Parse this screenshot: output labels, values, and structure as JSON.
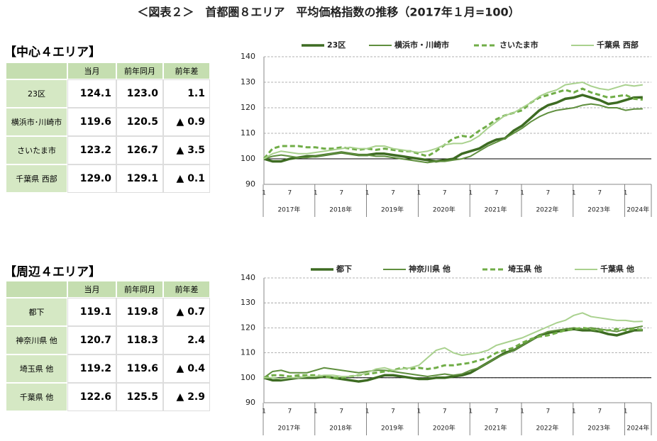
{
  "title": "＜図表２＞　首都圏８エリア　平均価格指数の推移（2017年１月=100）",
  "tables": [
    {
      "heading": "【中心４エリア】",
      "columns": [
        "当月",
        "前年同月",
        "前年差"
      ],
      "rows": [
        [
          "23区",
          "124.1",
          "123.0",
          "1.1"
        ],
        [
          "横浜市･川崎市",
          "119.6",
          "120.5",
          "▲ 0.9"
        ],
        [
          "さいたま市",
          "123.2",
          "126.7",
          "▲ 3.5"
        ],
        [
          "千葉県 西部",
          "129.0",
          "129.1",
          "▲ 0.1"
        ]
      ]
    },
    {
      "heading": "【周辺４エリア】",
      "columns": [
        "当月",
        "前年同月",
        "前年差"
      ],
      "rows": [
        [
          "都下",
          "119.1",
          "119.8",
          "▲ 0.7"
        ],
        [
          "神奈川県 他",
          "120.7",
          "118.3",
          "2.4"
        ],
        [
          "埼玉県 他",
          "119.2",
          "119.6",
          "▲ 0.4"
        ],
        [
          "千葉県 他",
          "122.6",
          "125.5",
          "▲ 2.9"
        ]
      ]
    }
  ],
  "chart_data": [
    {
      "type": "line",
      "ylim": [
        90,
        140
      ],
      "yticks": [
        90,
        100,
        110,
        120,
        130,
        140
      ],
      "grid": true,
      "reference_line": 100,
      "categories": [
        "1",
        null,
        null,
        "7",
        null,
        null,
        "1",
        null,
        null,
        "7",
        null,
        null,
        "1",
        null,
        null,
        "7",
        null,
        null,
        "1",
        null,
        null,
        "7",
        null,
        null,
        "1",
        null,
        null,
        "7",
        null,
        null,
        "1",
        null,
        null,
        "7",
        null,
        null,
        "1",
        null,
        null,
        "7",
        null,
        null,
        "1",
        null,
        null
      ],
      "year_labels": [
        "2017年",
        "2018年",
        "2019年",
        "2020年",
        "2021年",
        "2022年",
        "2023年",
        "2024年"
      ],
      "series": [
        {
          "name": "23区",
          "color": "#3d6b22",
          "width": 3.5,
          "dashed": false,
          "values": [
            100,
            99,
            99,
            100,
            100.5,
            101,
            101,
            101.5,
            102,
            102.5,
            102,
            101.5,
            101.5,
            102,
            102,
            101.5,
            101,
            100.5,
            100,
            99.5,
            99,
            99.5,
            100,
            102,
            103,
            104,
            106,
            107.5,
            108,
            111,
            113,
            116,
            119,
            121,
            122,
            123.5,
            124,
            125,
            124,
            123,
            121.5,
            122,
            123,
            124,
            124.1
          ]
        },
        {
          "name": "横浜市・川崎市",
          "color": "#5f8f3e",
          "width": 2,
          "dashed": false,
          "values": [
            100,
            101,
            101.5,
            101,
            100.5,
            100.5,
            101,
            101.5,
            102,
            102.5,
            102,
            101.5,
            101.5,
            101,
            101,
            100.5,
            100,
            99.5,
            99,
            98.5,
            99,
            99,
            99.5,
            100,
            101,
            103,
            105,
            106.5,
            108,
            110,
            112,
            114.5,
            116.5,
            118,
            119,
            119.5,
            120,
            121,
            121.5,
            121,
            120,
            120,
            119,
            119.5,
            119.6
          ]
        },
        {
          "name": "さいたま市",
          "color": "#70ad47",
          "width": 3,
          "dashed": true,
          "values": [
            100,
            104,
            105,
            105,
            105,
            104.5,
            104.5,
            104,
            104,
            104.5,
            104,
            103.5,
            104,
            103.5,
            104,
            103.5,
            103,
            103,
            102,
            101,
            103,
            105.5,
            108,
            109,
            108.5,
            111,
            113,
            115.5,
            117,
            118,
            119,
            122,
            124,
            125,
            126,
            127,
            126,
            127.5,
            126,
            125,
            124,
            124.5,
            125,
            123.5,
            123.2
          ]
        },
        {
          "name": "千葉県 西部",
          "color": "#a9d18e",
          "width": 2,
          "dashed": false,
          "values": [
            100,
            102,
            103,
            102.5,
            102,
            102,
            102.5,
            103,
            103.5,
            104,
            104.5,
            104,
            104,
            105,
            105,
            104,
            103.5,
            103,
            102.5,
            103,
            104,
            105.5,
            106,
            106,
            107,
            109,
            112,
            114.5,
            117,
            118,
            120,
            122,
            124.5,
            126,
            127,
            129,
            129.5,
            130,
            128.5,
            127.5,
            127,
            128,
            129,
            128.5,
            129.0
          ]
        }
      ]
    },
    {
      "type": "line",
      "ylim": [
        90,
        140
      ],
      "yticks": [
        90,
        100,
        110,
        120,
        130,
        140
      ],
      "grid": true,
      "reference_line": 100,
      "categories": [
        "1",
        null,
        null,
        "7",
        null,
        null,
        "1",
        null,
        null,
        "7",
        null,
        null,
        "1",
        null,
        null,
        "7",
        null,
        null,
        "1",
        null,
        null,
        "7",
        null,
        null,
        "1",
        null,
        null,
        "7",
        null,
        null,
        "1",
        null,
        null,
        "7",
        null,
        null,
        "1",
        null,
        null,
        "7",
        null,
        null,
        "1",
        null,
        null
      ],
      "year_labels": [
        "2017年",
        "2018年",
        "2019年",
        "2020年",
        "2021年",
        "2022年",
        "2023年",
        "2024年"
      ],
      "series": [
        {
          "name": "都下",
          "color": "#3d6b22",
          "width": 3.5,
          "dashed": false,
          "values": [
            100,
            99,
            99,
            99.5,
            100,
            100,
            100,
            100.5,
            100,
            99.5,
            99,
            98.5,
            99,
            100,
            101,
            101,
            100.5,
            100,
            99.5,
            99.5,
            100,
            100,
            100.5,
            101,
            102,
            104,
            106,
            108,
            110,
            111,
            113,
            115,
            117,
            118,
            118.5,
            119,
            119.5,
            119,
            119,
            118.5,
            117.5,
            117,
            118,
            119,
            119.1
          ]
        },
        {
          "name": "神奈川県 他",
          "color": "#5f8f3e",
          "width": 2,
          "dashed": false,
          "values": [
            100,
            102.5,
            103,
            102,
            102,
            102,
            103,
            104,
            103.5,
            103,
            102.5,
            102,
            102.5,
            103,
            103,
            102.5,
            102,
            101.5,
            101,
            100.5,
            101,
            101.5,
            101,
            101.5,
            103,
            104,
            106,
            108,
            109.5,
            111,
            113,
            115,
            117,
            118.5,
            119,
            119.5,
            120,
            119.5,
            120,
            119.5,
            119,
            118.5,
            119.5,
            120,
            120.7
          ]
        },
        {
          "name": "埼玉県 他",
          "color": "#70ad47",
          "width": 3,
          "dashed": true,
          "values": [
            100,
            101,
            101,
            100.5,
            101,
            101,
            101,
            100.5,
            100,
            100,
            100.5,
            101,
            101.5,
            102,
            102.5,
            103,
            104,
            103.5,
            104,
            103.5,
            104,
            105,
            105,
            105.5,
            106,
            107,
            108,
            110,
            111,
            112,
            114,
            115.5,
            116.5,
            117,
            118,
            119,
            119.5,
            120,
            119.5,
            119,
            119,
            119.5,
            119,
            119.5,
            119.2
          ]
        },
        {
          "name": "千葉県 他",
          "color": "#a9d18e",
          "width": 2,
          "dashed": false,
          "values": [
            100,
            100,
            99.5,
            100,
            100,
            100.5,
            100.5,
            101,
            101,
            100.5,
            100.5,
            101,
            102,
            103.5,
            104,
            103,
            103.5,
            104,
            105,
            108,
            111,
            112,
            110,
            109,
            109.5,
            110,
            111,
            113,
            114,
            115,
            116,
            117.5,
            119,
            120.5,
            122,
            123,
            125,
            126,
            124.5,
            124,
            123.5,
            123,
            123,
            122.5,
            122.6
          ]
        }
      ]
    }
  ]
}
